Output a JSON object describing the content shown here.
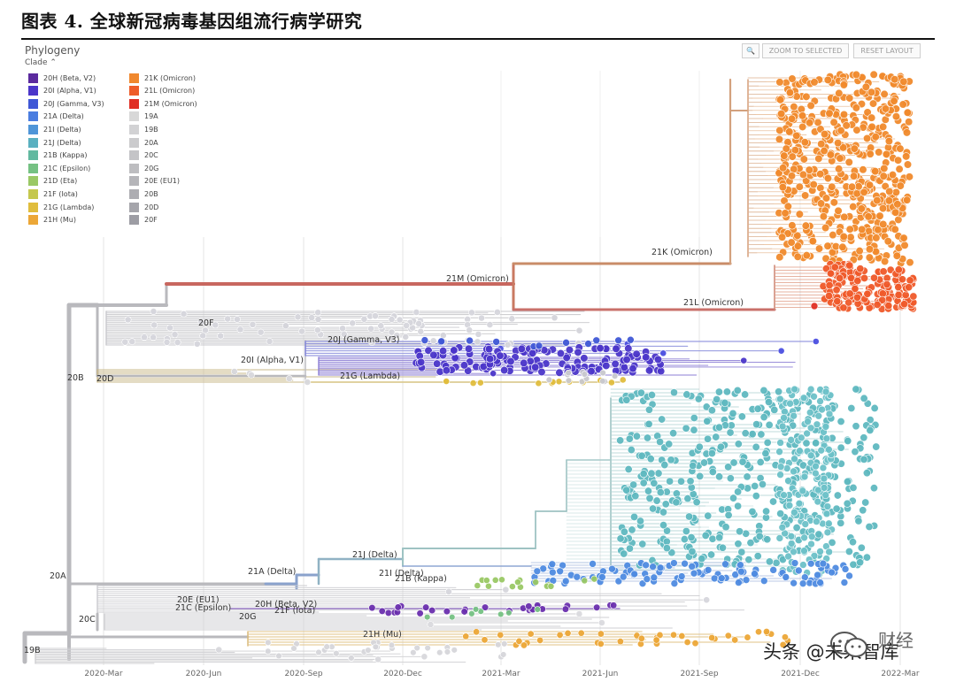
{
  "figure": {
    "title": "图表 4. 全球新冠病毒基因组流行病学研究"
  },
  "panel": {
    "title": "Phylogeny",
    "clade_toggle": "Clade ⌃",
    "zoom_icon": "search-icon",
    "zoom_label": "ZOOM TO SELECTED",
    "reset_label": "RESET LAYOUT"
  },
  "legend": {
    "col1": [
      {
        "label": "20H (Beta, V2)",
        "color": "#5b2a9e"
      },
      {
        "label": "20I (Alpha, V1)",
        "color": "#4b36c9"
      },
      {
        "label": "20J (Gamma, V3)",
        "color": "#3f57d6"
      },
      {
        "label": "21A (Delta)",
        "color": "#4a7de0"
      },
      {
        "label": "21I (Delta)",
        "color": "#4f95d8"
      },
      {
        "label": "21J (Delta)",
        "color": "#5ab0c0"
      },
      {
        "label": "21B (Kappa)",
        "color": "#62b9a0"
      },
      {
        "label": "21C (Epsilon)",
        "color": "#75c183"
      },
      {
        "label": "21D (Eta)",
        "color": "#9ac865"
      },
      {
        "label": "21F (Iota)",
        "color": "#c5c84e"
      },
      {
        "label": "21G (Lambda)",
        "color": "#e0bd3d"
      },
      {
        "label": "21H (Mu)",
        "color": "#eca737"
      }
    ],
    "col2": [
      {
        "label": "21K (Omicron)",
        "color": "#f0882e"
      },
      {
        "label": "21L (Omicron)",
        "color": "#ee5d2a"
      },
      {
        "label": "21M (Omicron)",
        "color": "#e02f24"
      },
      {
        "label": "19A",
        "color": "#d8d8d8"
      },
      {
        "label": "19B",
        "color": "#d2d2d4"
      },
      {
        "label": "20A",
        "color": "#cbcbcd"
      },
      {
        "label": "20C",
        "color": "#c4c4c7"
      },
      {
        "label": "20G",
        "color": "#bdbdc0"
      },
      {
        "label": "20E (EU1)",
        "color": "#b5b5b9"
      },
      {
        "label": "20B",
        "color": "#adadb2"
      },
      {
        "label": "20D",
        "color": "#a5a5ab"
      },
      {
        "label": "20F",
        "color": "#9d9da4"
      }
    ]
  },
  "axis": {
    "ticks": [
      "2020-Mar",
      "2020-Jun",
      "2020-Sep",
      "2020-Dec",
      "2021-Mar",
      "2021-Jun",
      "2021-Sep",
      "2021-Dec",
      "2022-Mar"
    ]
  },
  "branch_labels": {
    "m21": "21M (Omicron)",
    "k21": "21K (Omicron)",
    "l21": "21L (Omicron)",
    "f20": "20F",
    "j20": "20J (Gamma, V3)",
    "i20": "20I (Alpha, V1)",
    "g21": "21G (Lambda)",
    "b20": "20B",
    "d20": "20D",
    "a20": "20A",
    "j21": "21J (Delta)",
    "a21": "21A (Delta)",
    "i21": "21I (Delta)",
    "b21": "21B (Kappa)",
    "e20": "20E (EU1)",
    "h20": "20H (Beta, V2)",
    "c21": "21C (Epsilon)",
    "g20": "20G",
    "f21": "21F (Iota)",
    "c20": "20C",
    "h21": "21H (Mu)",
    "b19": "19B"
  },
  "watermark": {
    "text": "头条 @未来智库",
    "logo_text": "财经"
  }
}
